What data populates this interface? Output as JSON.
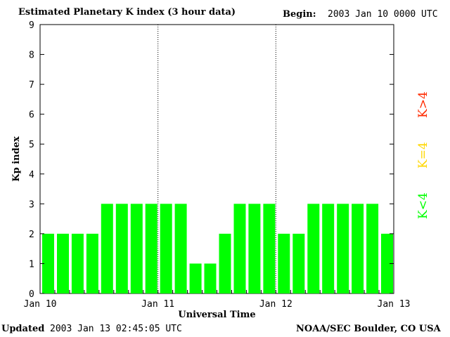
{
  "header": {
    "title": "Estimated Planetary K index (3 hour data)",
    "begin_label": "Begin:",
    "begin_value": "2003 Jan 10 0000 UTC"
  },
  "footer": {
    "updated_label": "Updated",
    "updated_value": "2003 Jan 13 02:45:05 UTC",
    "source": "NOAA/SEC Boulder, CO USA"
  },
  "legend": {
    "low": "K<4",
    "eq": "K=4",
    "high": "K>4"
  },
  "colors": {
    "low": "#00ff00",
    "eq": "#ffd700",
    "high": "#ff2a00"
  },
  "chart_data": {
    "type": "bar",
    "title": "Estimated Planetary K index (3 hour data)",
    "xlabel": "Universal Time",
    "ylabel": "Kp index",
    "ylim": [
      0,
      9
    ],
    "yticks": [
      "0",
      "1",
      "2",
      "3",
      "4",
      "5",
      "6",
      "7",
      "8",
      "9"
    ],
    "x_tick_labels": [
      "Jan 10",
      "Jan 11",
      "Jan 12",
      "Jan 13"
    ],
    "day_separators": [
      "Jan 11",
      "Jan 12"
    ],
    "interval_hours": 3,
    "values": [
      2,
      2,
      2,
      2,
      3,
      3,
      3,
      3,
      3,
      3,
      1,
      1,
      2,
      3,
      3,
      3,
      2,
      2,
      3,
      3,
      3,
      3,
      3,
      2
    ]
  }
}
